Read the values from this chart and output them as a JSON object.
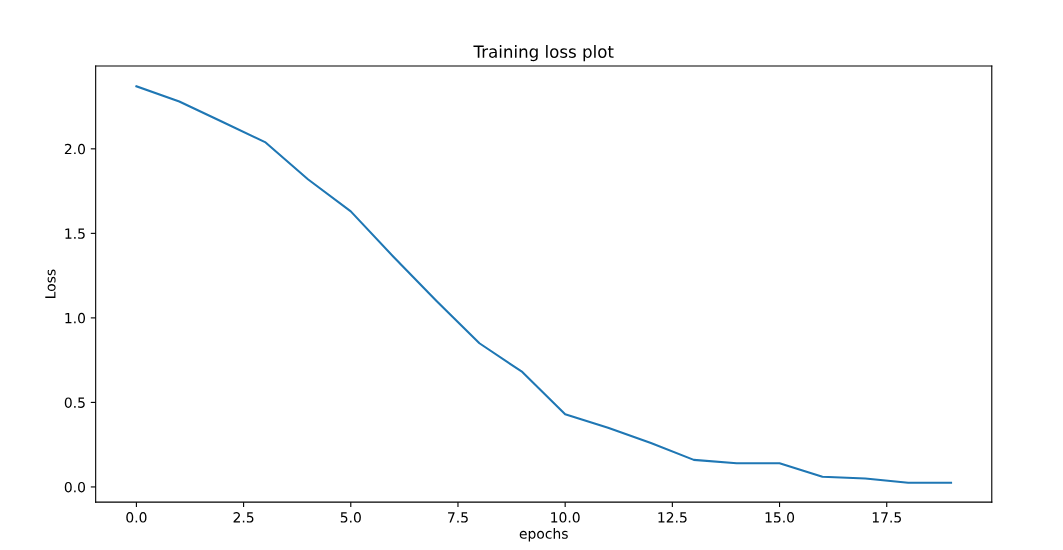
{
  "chart_data": {
    "type": "line",
    "title": "Training loss plot",
    "xlabel": "epochs",
    "ylabel": "Loss",
    "x": [
      0,
      1,
      2,
      3,
      4,
      5,
      6,
      7,
      8,
      9,
      10,
      11,
      12,
      13,
      14,
      15,
      16,
      17,
      18,
      19
    ],
    "series": [
      {
        "color": "#1f77b4",
        "values": [
          2.37,
          2.28,
          2.16,
          2.04,
          1.82,
          1.63,
          1.36,
          1.1,
          0.85,
          0.68,
          0.43,
          0.35,
          0.26,
          0.16,
          0.14,
          0.14,
          0.06,
          0.05,
          0.025,
          0.025
        ]
      }
    ],
    "xlim": [
      -0.95,
      19.95
    ],
    "ylim": [
      -0.09,
      2.49
    ],
    "xticks": [
      {
        "value": 0,
        "label": "0.0"
      },
      2.5,
      {
        "value": 5,
        "label": "5.0"
      },
      7.5,
      {
        "value": 10,
        "label": "10.0"
      },
      12.5,
      {
        "value": 15,
        "label": "15.0"
      },
      17.5
    ],
    "yticks": [
      {
        "value": 0,
        "label": "0.0"
      },
      0.5,
      {
        "value": 1,
        "label": "1.0"
      },
      1.5,
      {
        "value": 2,
        "label": "2.0"
      }
    ],
    "grid": false
  }
}
